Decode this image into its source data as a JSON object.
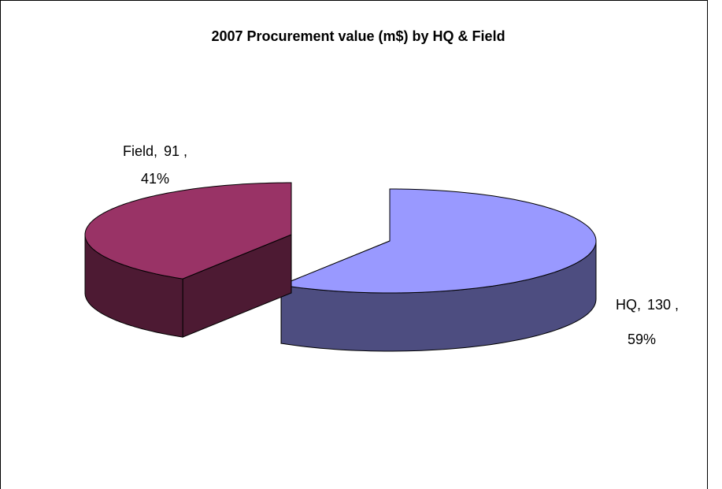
{
  "chart_data": {
    "type": "pie3d",
    "title": "2007 Procurement value (m$) by HQ & Field",
    "categories": [
      "HQ,",
      "Field,"
    ],
    "values": [
      130,
      91
    ],
    "value_labels": [
      "130 ,",
      "91 ,"
    ],
    "percent_labels": [
      "59%",
      "41%"
    ],
    "colors": [
      "#9999ff",
      "#993366"
    ],
    "side_colors": [
      "#4d4d80",
      "#4d1a33"
    ]
  }
}
